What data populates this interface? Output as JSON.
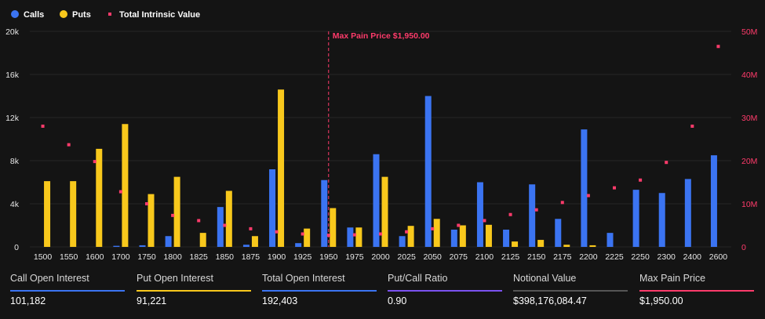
{
  "colors": {
    "calls": "#3b74f2",
    "puts": "#f8c81c",
    "intrinsic": "#ff3b6b",
    "grid": "#262626",
    "axis_text": "#e6e6e6"
  },
  "chart_data": {
    "type": "bar",
    "legend": [
      "Calls",
      "Puts",
      "Total Intrinsic Value"
    ],
    "legend_position": "top-left",
    "categories": [
      "1500",
      "1550",
      "1600",
      "1700",
      "1750",
      "1800",
      "1825",
      "1850",
      "1875",
      "1900",
      "1925",
      "1950",
      "1975",
      "2000",
      "2025",
      "2050",
      "2075",
      "2100",
      "2125",
      "2150",
      "2175",
      "2200",
      "2225",
      "2250",
      "2300",
      "2400",
      "2600"
    ],
    "series": [
      {
        "name": "Calls",
        "axis": "left",
        "kind": "bar",
        "values": [
          0,
          0,
          0,
          100,
          150,
          1000,
          0,
          3700,
          200,
          7200,
          350,
          6200,
          1800,
          8600,
          1000,
          14000,
          1600,
          6000,
          1600,
          5800,
          2600,
          10900,
          1300,
          5300,
          5000,
          6300,
          8500
        ]
      },
      {
        "name": "Puts",
        "axis": "left",
        "kind": "bar",
        "values": [
          6100,
          6100,
          9100,
          11400,
          4900,
          6500,
          1300,
          5200,
          1000,
          14600,
          1700,
          3600,
          1800,
          6500,
          1950,
          2600,
          2000,
          2050,
          500,
          650,
          200,
          150,
          0,
          0,
          0,
          0,
          0
        ]
      },
      {
        "name": "Total Intrinsic Value",
        "axis": "right",
        "kind": "scatter",
        "values": [
          28000000,
          23700000,
          19800000,
          12800000,
          10000000,
          7300000,
          6100000,
          5000000,
          4200000,
          3500000,
          3000000,
          2700000,
          2800000,
          3000000,
          3500000,
          4200000,
          5000000,
          6100000,
          7500000,
          8600000,
          10300000,
          11900000,
          13700000,
          15500000,
          19600000,
          28000000,
          46500000
        ]
      }
    ],
    "y_left": {
      "ylim": [
        0,
        20000
      ],
      "ticks": [
        0,
        4000,
        8000,
        12000,
        16000,
        20000
      ],
      "tick_labels": [
        "0",
        "4k",
        "8k",
        "12k",
        "16k",
        "20k"
      ]
    },
    "y_right": {
      "ylim": [
        0,
        50000000
      ],
      "ticks": [
        0,
        10000000,
        20000000,
        30000000,
        40000000,
        50000000
      ],
      "tick_labels": [
        "0",
        "10M",
        "20M",
        "30M",
        "40M",
        "50M"
      ]
    },
    "grid": true,
    "annotation": {
      "category": "1950",
      "label": "Max Pain Price $1,950.00"
    }
  },
  "stats": [
    {
      "label": "Call Open Interest",
      "value": "101,182",
      "color": "#3b74f2"
    },
    {
      "label": "Put Open Interest",
      "value": "91,221",
      "color": "#f8c81c"
    },
    {
      "label": "Total Open Interest",
      "value": "192,403",
      "color": "#3b74f2"
    },
    {
      "label": "Put/Call Ratio",
      "value": "0.90",
      "color": "#7b52f0"
    },
    {
      "label": "Notional Value",
      "value": "$398,176,084.47",
      "color": "#555555"
    },
    {
      "label": "Max Pain Price",
      "value": "$1,950.00",
      "color": "#ff3b6b"
    }
  ]
}
